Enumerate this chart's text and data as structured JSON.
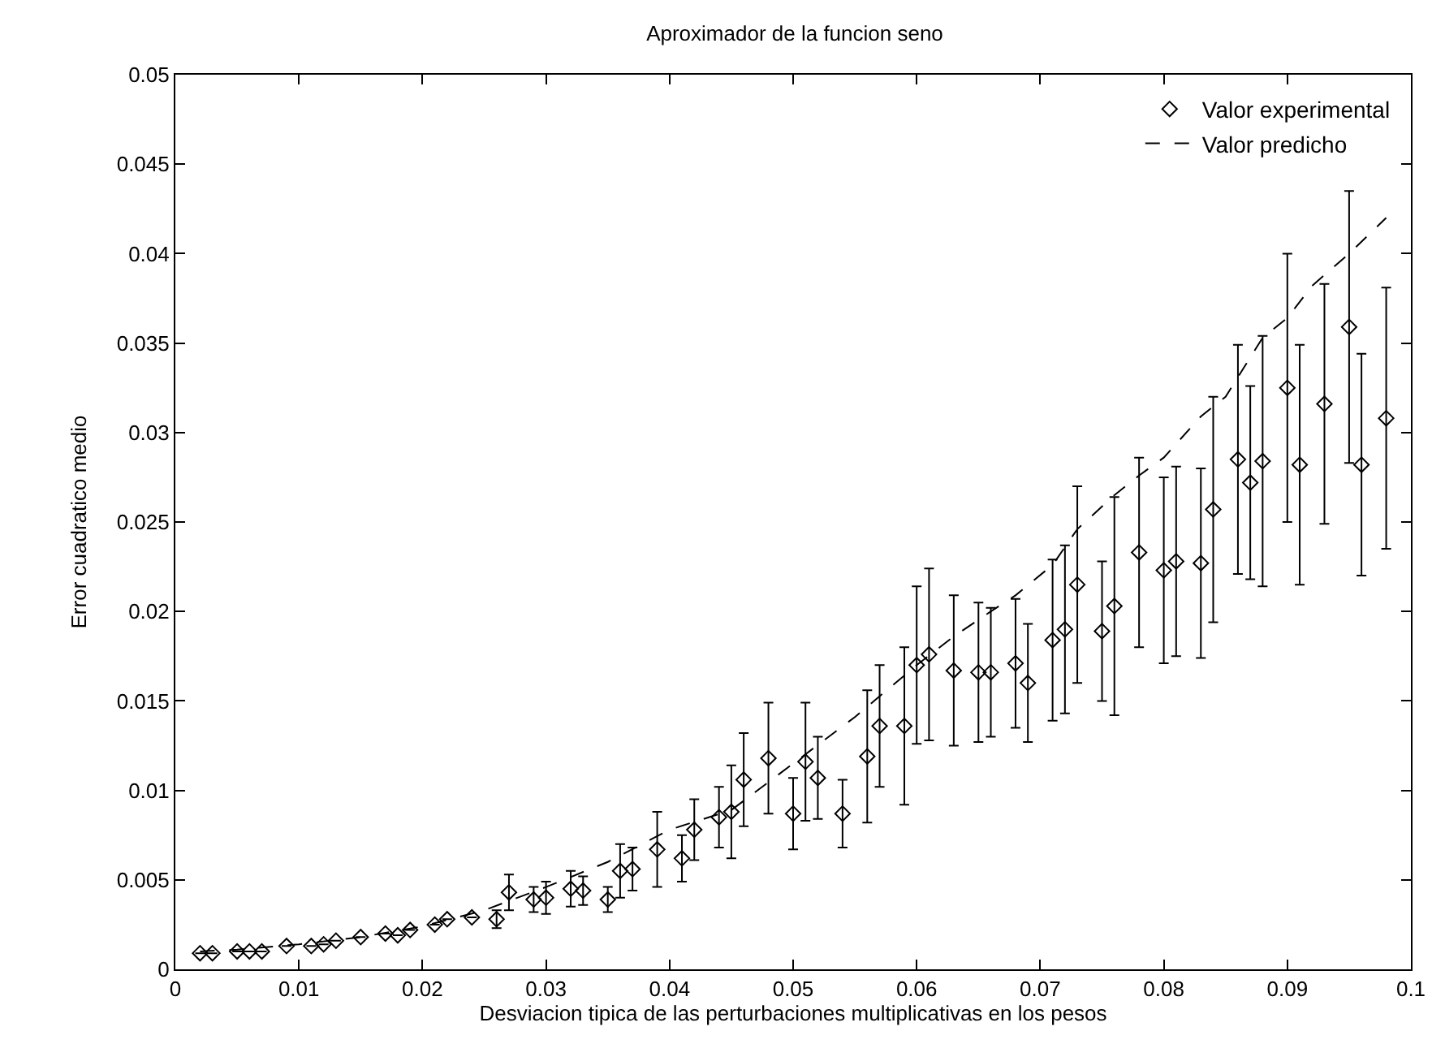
{
  "chart_data": {
    "type": "scatter",
    "title": "Aproximador de la funcion seno",
    "xlabel": "Desviacion tipica de las perturbaciones multiplicativas en los pesos",
    "ylabel": "Error cuadratico medio",
    "xlim": [
      0,
      0.1
    ],
    "xticks": [
      0,
      0.01,
      0.02,
      0.03,
      0.04,
      0.05,
      0.06,
      0.07,
      0.08,
      0.09,
      0.1
    ],
    "ylim": [
      0,
      0.05
    ],
    "yticks": [
      0,
      0.005,
      0.01,
      0.015,
      0.02,
      0.025,
      0.03,
      0.035,
      0.04,
      0.045,
      0.05
    ],
    "legend": "top right",
    "series": [
      {
        "name": "Valor experimental",
        "marker": "diamond",
        "color": "#000000",
        "x": [
          0.002,
          0.003,
          0.005,
          0.006,
          0.007,
          0.009,
          0.011,
          0.012,
          0.013,
          0.015,
          0.017,
          0.018,
          0.019,
          0.021,
          0.022,
          0.024,
          0.026,
          0.027,
          0.029,
          0.03,
          0.032,
          0.033,
          0.035,
          0.036,
          0.037,
          0.039,
          0.041,
          0.042,
          0.044,
          0.045,
          0.046,
          0.048,
          0.05,
          0.051,
          0.052,
          0.054,
          0.056,
          0.057,
          0.059,
          0.06,
          0.061,
          0.063,
          0.065,
          0.066,
          0.068,
          0.069,
          0.071,
          0.072,
          0.073,
          0.075,
          0.076,
          0.078,
          0.08,
          0.081,
          0.083,
          0.084,
          0.086,
          0.087,
          0.088,
          0.09,
          0.091,
          0.093,
          0.095,
          0.096,
          0.098
        ],
        "values": [
          0.0009,
          0.0009,
          0.001,
          0.001,
          0.001,
          0.0013,
          0.0013,
          0.0014,
          0.0016,
          0.0018,
          0.002,
          0.0019,
          0.0022,
          0.0025,
          0.0028,
          0.0029,
          0.0028,
          0.0043,
          0.0039,
          0.004,
          0.0045,
          0.0044,
          0.0039,
          0.0055,
          0.0056,
          0.0067,
          0.0062,
          0.0078,
          0.0085,
          0.0088,
          0.0106,
          0.0118,
          0.0087,
          0.0116,
          0.0107,
          0.0087,
          0.0119,
          0.0136,
          0.0136,
          0.017,
          0.0176,
          0.0167,
          0.0166,
          0.0166,
          0.0171,
          0.016,
          0.0184,
          0.019,
          0.0215,
          0.0189,
          0.0203,
          0.0233,
          0.0223,
          0.0228,
          0.0227,
          0.0257,
          0.0285,
          0.0272,
          0.0284,
          0.0325,
          0.0282,
          0.0316,
          0.0359,
          0.0282,
          0.0308
        ],
        "errors": [
          null,
          null,
          null,
          null,
          null,
          null,
          null,
          null,
          null,
          null,
          null,
          null,
          null,
          null,
          null,
          null,
          0.0005,
          0.001,
          0.0007,
          0.0009,
          0.001,
          0.0008,
          0.0007,
          0.0015,
          0.0012,
          0.0021,
          0.0013,
          0.0017,
          0.0017,
          0.0026,
          0.0026,
          0.0031,
          0.002,
          0.0033,
          0.0023,
          0.0019,
          0.0037,
          0.0034,
          0.0044,
          0.0044,
          0.0048,
          0.0042,
          0.0039,
          0.0036,
          0.0036,
          0.0033,
          0.0045,
          0.0047,
          0.0055,
          0.0039,
          0.0061,
          0.0053,
          0.0052,
          0.0053,
          0.0053,
          0.0063,
          0.0064,
          0.0054,
          0.007,
          0.0075,
          0.0067,
          0.0067,
          0.0076,
          0.0062,
          0.0073
        ]
      },
      {
        "name": "Valor predicho",
        "type": "line",
        "line_style": "dashed",
        "marker": "none",
        "color": "#000000",
        "x": [
          0.002,
          0.005,
          0.01,
          0.015,
          0.02,
          0.025,
          0.03,
          0.035,
          0.04,
          0.045,
          0.05,
          0.055,
          0.06,
          0.063,
          0.066,
          0.068,
          0.071,
          0.073,
          0.076,
          0.078,
          0.08,
          0.083,
          0.085,
          0.088,
          0.09,
          0.092,
          0.095,
          0.098
        ],
        "values": [
          0.001,
          0.0011,
          0.0014,
          0.0018,
          0.0024,
          0.0033,
          0.0046,
          0.006,
          0.0078,
          0.0089,
          0.0115,
          0.0141,
          0.017,
          0.0186,
          0.02,
          0.0209,
          0.0226,
          0.0246,
          0.0265,
          0.0276,
          0.0286,
          0.0309,
          0.032,
          0.0353,
          0.0364,
          0.0382,
          0.04,
          0.042
        ]
      }
    ]
  }
}
